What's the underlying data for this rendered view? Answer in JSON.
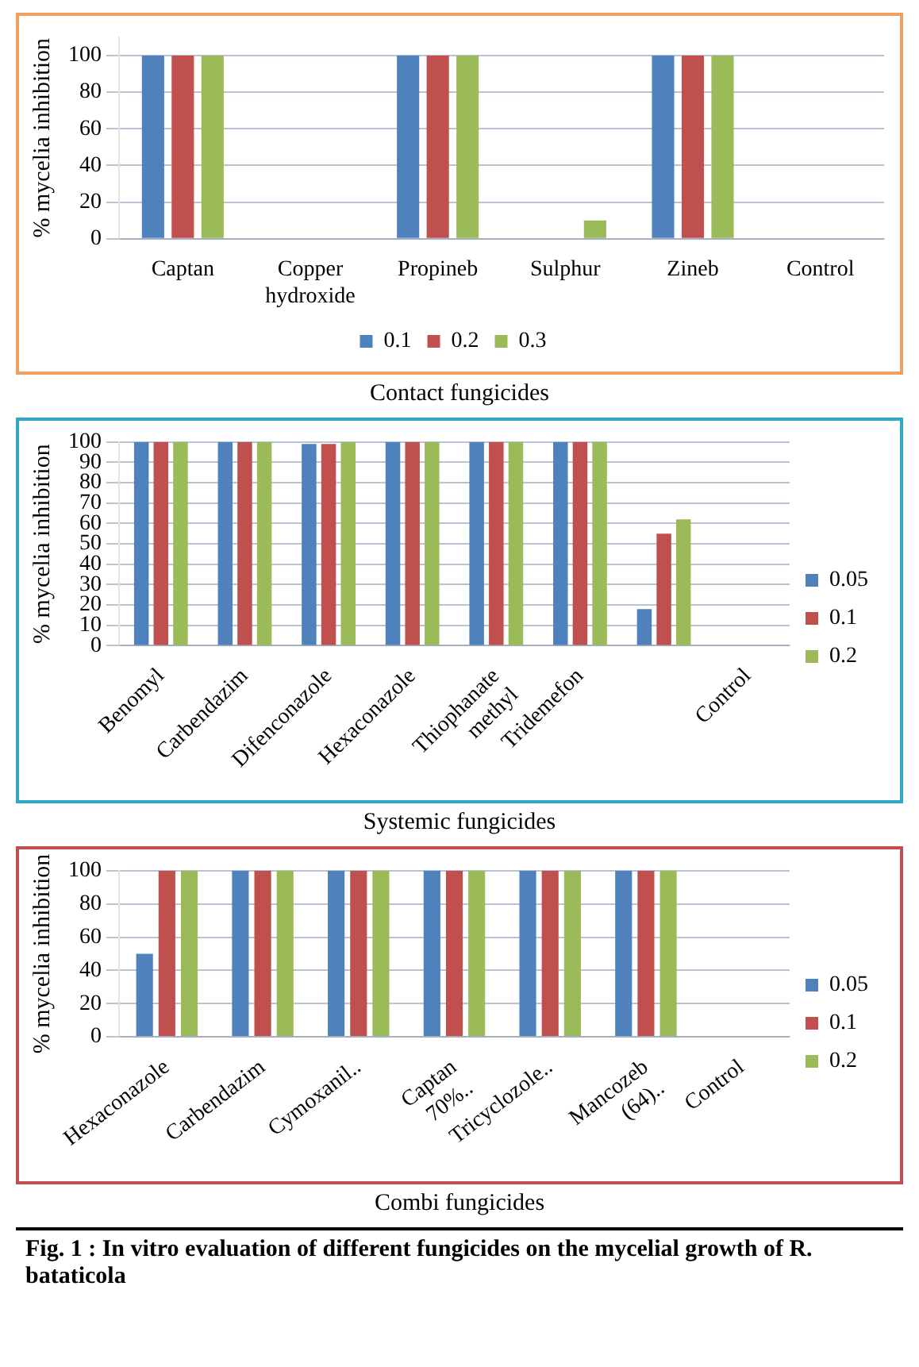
{
  "chart_data": [
    {
      "type": "bar",
      "ylabel": "% mycelia inhibition",
      "categories": [
        "Captan",
        "Copper hydroxide",
        "Propineb",
        "Sulphur",
        "Zineb",
        "Control"
      ],
      "series": [
        {
          "name": "0.1",
          "color": "#4f81bd",
          "values": [
            100,
            0,
            100,
            0,
            100,
            0
          ]
        },
        {
          "name": "0.2",
          "color": "#c0504d",
          "values": [
            100,
            0,
            100,
            0,
            100,
            0
          ]
        },
        {
          "name": "0.3",
          "color": "#9bbb59",
          "values": [
            100,
            0,
            100,
            10,
            100,
            0
          ]
        }
      ],
      "ylim": [
        0,
        110
      ],
      "yticks": [
        0,
        20,
        40,
        60,
        80,
        100
      ],
      "grid": "y",
      "legend": "bottom",
      "annotations": [
        "Contact fungicides"
      ]
    },
    {
      "type": "bar",
      "ylabel": "% mycelia inhibition",
      "categories": [
        "Benomyl",
        "Carbendazim",
        "Difenconazole",
        "Hexaconazole",
        "Thiophanate methyl",
        "Tridemefon",
        null,
        "Control"
      ],
      "series": [
        {
          "name": "0.05",
          "color": "#4f81bd",
          "values": [
            100,
            100,
            99,
            100,
            100,
            100,
            18,
            0
          ]
        },
        {
          "name": "0.1",
          "color": "#c0504d",
          "values": [
            100,
            100,
            99,
            100,
            100,
            100,
            55,
            0
          ]
        },
        {
          "name": "0.2",
          "color": "#9bbb59",
          "values": [
            100,
            100,
            100,
            100,
            100,
            100,
            62,
            0
          ]
        }
      ],
      "ylim": [
        0,
        100
      ],
      "yticks": [
        0,
        10,
        20,
        30,
        40,
        50,
        60,
        70,
        80,
        90,
        100
      ],
      "grid": "y",
      "legend": "right",
      "annotations": [
        "Systemic fungicides"
      ]
    },
    {
      "type": "bar",
      "ylabel": "% mycelia inhibition",
      "categories": [
        "Hexaconazole",
        "Carbendazim",
        "Cymoxanil..",
        "Captan 70%..",
        "Tricyclozole..",
        "Mancozeb (64)..",
        "Control"
      ],
      "series": [
        {
          "name": "0.05",
          "color": "#4f81bd",
          "values": [
            50,
            100,
            100,
            100,
            100,
            100,
            0
          ]
        },
        {
          "name": "0.1",
          "color": "#c0504d",
          "values": [
            100,
            100,
            100,
            100,
            100,
            100,
            0
          ]
        },
        {
          "name": "0.2",
          "color": "#9bbb59",
          "values": [
            100,
            100,
            100,
            100,
            100,
            100,
            0
          ]
        }
      ],
      "ylim": [
        0,
        100
      ],
      "yticks": [
        0,
        20,
        40,
        60,
        80,
        100
      ],
      "grid": "y",
      "legend": "right",
      "annotations": [
        "Combi fungicides",
        "Fig. 1 :  In vitro evaluation of different fungicides on the mycelial growth of R. bataticola"
      ]
    }
  ]
}
